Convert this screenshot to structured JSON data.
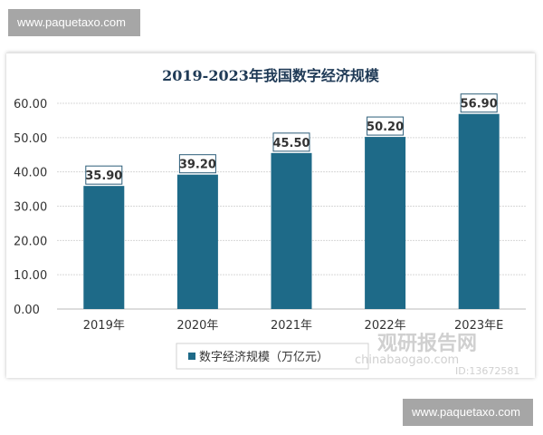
{
  "watermark_text": "www.paquetaxo.com",
  "chart_data": {
    "type": "bar",
    "title": "2019-2023年我国数字经济规模",
    "categories": [
      "2019年",
      "2020年",
      "2021年",
      "2022年",
      "2023年E"
    ],
    "series": [
      {
        "name": "数字经济规模（万亿元）",
        "values": [
          35.9,
          39.2,
          45.5,
          50.2,
          56.9
        ]
      }
    ],
    "data_labels": [
      "35.90",
      "39.20",
      "45.50",
      "50.20",
      "56.90"
    ],
    "yticks": [
      "0.00",
      "10.00",
      "20.00",
      "30.00",
      "40.00",
      "50.00",
      "60.00"
    ],
    "ylim": [
      0,
      60
    ],
    "grid": true,
    "legend": "bottom",
    "bar_color": "#1e6a88",
    "xlabel": "",
    "ylabel": ""
  },
  "source_logo": {
    "name": "观研报告网",
    "domain": "chinabaogao.com",
    "id": "ID:13672581"
  }
}
